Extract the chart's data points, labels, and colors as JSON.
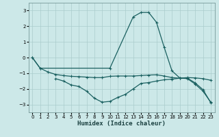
{
  "xlabel": "Humidex (Indice chaleur)",
  "bg_color": "#cce8e8",
  "grid_color": "#aacccc",
  "line_color": "#1a6060",
  "xlim": [
    -0.5,
    23.5
  ],
  "ylim": [
    -3.5,
    3.5
  ],
  "yticks": [
    -3,
    -2,
    -1,
    0,
    1,
    2,
    3
  ],
  "xticks": [
    0,
    1,
    2,
    3,
    4,
    5,
    6,
    7,
    8,
    9,
    10,
    11,
    12,
    13,
    14,
    15,
    16,
    17,
    18,
    19,
    20,
    21,
    22,
    23
  ],
  "curve1_x": [
    0,
    1,
    10,
    13,
    14,
    15,
    16,
    17,
    18,
    19,
    20,
    21,
    22,
    23
  ],
  "curve1_y": [
    0.0,
    -0.68,
    -0.68,
    2.6,
    2.88,
    2.88,
    2.25,
    0.65,
    -0.85,
    -1.3,
    -1.35,
    -1.7,
    -2.15,
    -2.85
  ],
  "curve2_x": [
    3,
    4,
    5,
    6,
    7,
    8,
    9,
    10,
    11,
    12,
    13,
    14,
    15,
    16,
    17,
    18,
    19,
    20,
    21,
    22,
    23
  ],
  "curve2_y": [
    -1.35,
    -1.5,
    -1.75,
    -1.85,
    -2.15,
    -2.6,
    -2.85,
    -2.8,
    -2.55,
    -2.35,
    -2.0,
    -1.65,
    -1.6,
    -1.5,
    -1.42,
    -1.38,
    -1.32,
    -1.32,
    -1.62,
    -2.05,
    -2.88
  ],
  "curve3_x": [
    0,
    1,
    2,
    3,
    4,
    5,
    6,
    7,
    8,
    9,
    10,
    11,
    12,
    13,
    14,
    15,
    16,
    17,
    18,
    19,
    20,
    21,
    22,
    23
  ],
  "curve3_y": [
    0.0,
    -0.68,
    -0.92,
    -1.08,
    -1.15,
    -1.2,
    -1.22,
    -1.25,
    -1.28,
    -1.28,
    -1.2,
    -1.18,
    -1.18,
    -1.18,
    -1.15,
    -1.12,
    -1.1,
    -1.18,
    -1.28,
    -1.32,
    -1.28,
    -1.3,
    -1.35,
    -1.45
  ]
}
